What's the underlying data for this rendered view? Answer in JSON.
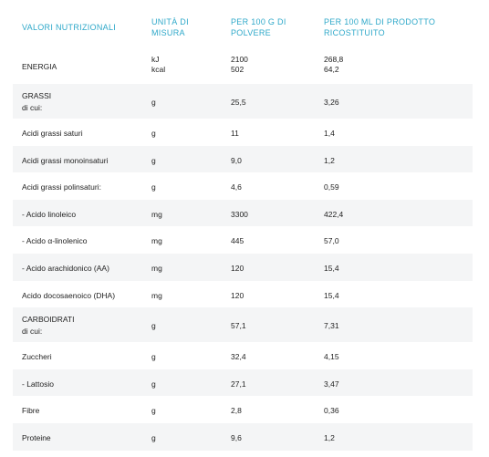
{
  "header": {
    "col1": "VALORI NUTRIZIONALI",
    "col2": "UNITÀ DI MISURA",
    "col3": "PER 100 G DI POLVERE",
    "col4": "PER 100 ML DI PRODOTTO RICOSTITUITO"
  },
  "rows": [
    {
      "name": "ENERGIA",
      "sub": "",
      "unit": "kJ",
      "unit2": "kcal",
      "p100g": "2100",
      "p100g2": "502",
      "p100ml": "268,8",
      "p100ml2": "64,2"
    },
    {
      "name": "GRASSI",
      "sub": "di cui:",
      "unit": "g",
      "unit2": "",
      "p100g": "25,5",
      "p100g2": "",
      "p100ml": "3,26",
      "p100ml2": ""
    },
    {
      "name": "Acidi grassi saturi",
      "sub": "",
      "unit": "g",
      "unit2": "",
      "p100g": "11",
      "p100g2": "",
      "p100ml": "1,4",
      "p100ml2": ""
    },
    {
      "name": "Acidi grassi monoinsaturi",
      "sub": "",
      "unit": "g",
      "unit2": "",
      "p100g": "9,0",
      "p100g2": "",
      "p100ml": "1,2",
      "p100ml2": ""
    },
    {
      "name": "Acidi grassi polinsaturi:",
      "sub": "",
      "unit": "g",
      "unit2": "",
      "p100g": "4,6",
      "p100g2": "",
      "p100ml": "0,59",
      "p100ml2": ""
    },
    {
      "name": "- Acido linoleico",
      "sub": "",
      "unit": "mg",
      "unit2": "",
      "p100g": "3300",
      "p100g2": "",
      "p100ml": "422,4",
      "p100ml2": ""
    },
    {
      "name": "- Acido α-linolenico",
      "sub": "",
      "unit": "mg",
      "unit2": "",
      "p100g": "445",
      "p100g2": "",
      "p100ml": "57,0",
      "p100ml2": ""
    },
    {
      "name": "- Acido arachidonico (AA)",
      "sub": "",
      "unit": "mg",
      "unit2": "",
      "p100g": "120",
      "p100g2": "",
      "p100ml": "15,4",
      "p100ml2": ""
    },
    {
      "name": "Acido docosaenoico (DHA)",
      "sub": "",
      "unit": "mg",
      "unit2": "",
      "p100g": "120",
      "p100g2": "",
      "p100ml": "15,4",
      "p100ml2": ""
    },
    {
      "name": "CARBOIDRATI",
      "sub": "di cui:",
      "unit": "g",
      "unit2": "",
      "p100g": "57,1",
      "p100g2": "",
      "p100ml": "7,31",
      "p100ml2": ""
    },
    {
      "name": "Zuccheri",
      "sub": "",
      "unit": "g",
      "unit2": "",
      "p100g": "32,4",
      "p100g2": "",
      "p100ml": "4,15",
      "p100ml2": ""
    },
    {
      "name": "- Lattosio",
      "sub": "",
      "unit": "g",
      "unit2": "",
      "p100g": "27,1",
      "p100g2": "",
      "p100ml": "3,47",
      "p100ml2": ""
    },
    {
      "name": "Fibre",
      "sub": "",
      "unit": "g",
      "unit2": "",
      "p100g": "2,8",
      "p100g2": "",
      "p100ml": "0,36",
      "p100ml2": ""
    },
    {
      "name": "Proteine",
      "sub": "",
      "unit": "g",
      "unit2": "",
      "p100g": "9,6",
      "p100g2": "",
      "p100ml": "1,2",
      "p100ml2": ""
    }
  ]
}
